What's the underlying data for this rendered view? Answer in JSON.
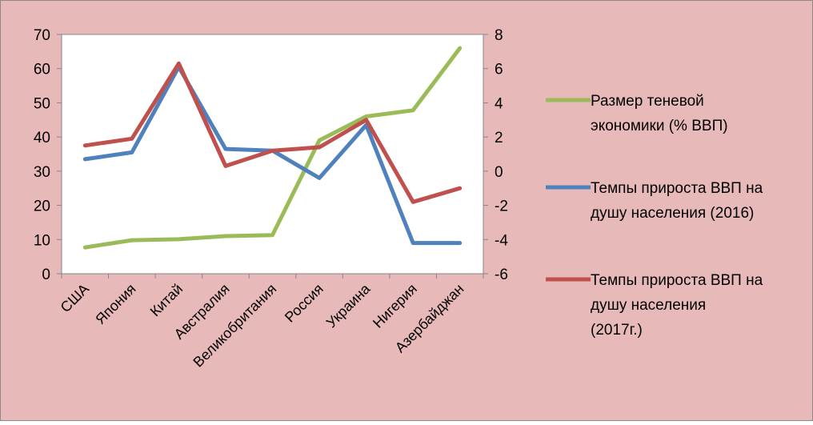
{
  "colors": {
    "background": "#e8b9b9",
    "plot_area": "#ffffff",
    "border": "#8a8a8a",
    "axis": "#868686"
  },
  "chart_data": {
    "type": "line",
    "categories": [
      "США",
      "Япония",
      "Китай",
      "Австралия",
      "Великобритания",
      "Россия",
      "Украина",
      "Нигерия",
      "Азербайджан"
    ],
    "left_axis": {
      "ylim": [
        0,
        70
      ],
      "ticks": [
        0,
        10,
        20,
        30,
        40,
        50,
        60,
        70
      ]
    },
    "right_axis": {
      "ylim": [
        -6,
        8
      ],
      "ticks": [
        -6,
        -4,
        -2,
        0,
        2,
        4,
        6,
        8
      ]
    },
    "grid": false,
    "legend_position": "right",
    "series": [
      {
        "name": "Размер теневой экономики (% ВВП)",
        "axis": "left",
        "color": "#9bbb59",
        "values": [
          7.7,
          9.8,
          10.1,
          11.0,
          11.3,
          39.0,
          46.0,
          47.8,
          66.0
        ]
      },
      {
        "name": "Темпы прироста ВВП на душу населения (2016)",
        "axis": "right",
        "color": "#4f81bd",
        "values": [
          0.7,
          1.1,
          6.1,
          1.3,
          1.2,
          -0.4,
          2.7,
          -4.2,
          -4.2
        ]
      },
      {
        "name": "Темпы прироста ВВП на душу населения (2017г.)",
        "axis": "right",
        "color": "#c0504d",
        "values": [
          1.5,
          1.9,
          6.3,
          0.3,
          1.2,
          1.4,
          3.0,
          -1.8,
          -1.0
        ]
      }
    ]
  },
  "legend_lines": [
    [
      "Размер теневой",
      "экономики (% ВВП)"
    ],
    [
      "Темпы прироста ВВП на",
      "душу населения (2016)"
    ],
    [
      "Темпы прироста ВВП на",
      "душу населения",
      "(2017г.)"
    ]
  ]
}
